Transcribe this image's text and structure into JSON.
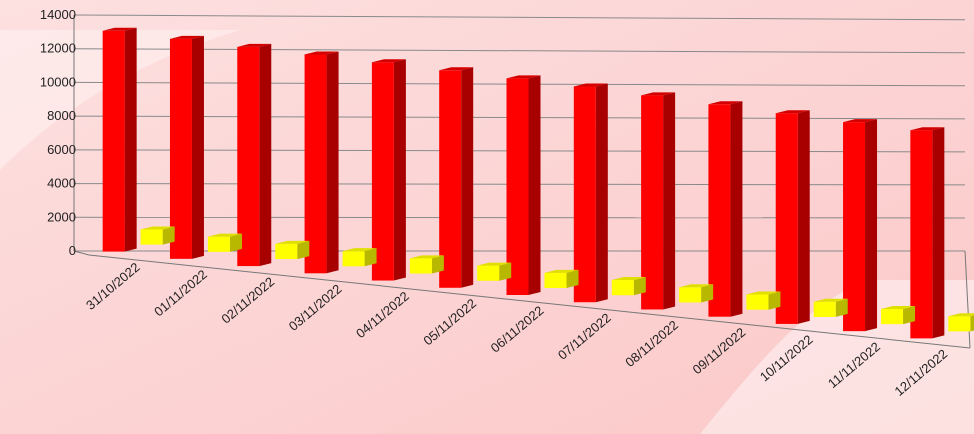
{
  "chart_data": {
    "type": "bar",
    "title": "",
    "xlabel": "",
    "ylabel": "",
    "ylim": [
      0,
      14000
    ],
    "yticks": [
      0,
      2000,
      4000,
      6000,
      8000,
      10000,
      12000,
      14000
    ],
    "categories": [
      "31/10/2022",
      "01/11/2022",
      "02/11/2022",
      "03/11/2022",
      "04/11/2022",
      "05/11/2022",
      "06/11/2022",
      "07/11/2022",
      "08/11/2022",
      "09/11/2022",
      "10/11/2022",
      "11/11/2022",
      "12/11/2022"
    ],
    "series": [
      {
        "values": [
          13100,
          13050,
          13000,
          12980,
          12950,
          12900,
          12850,
          12800,
          12700,
          12600,
          12500,
          12400,
          12350
        ]
      },
      {
        "values": [
          900,
          900,
          900,
          900,
          900,
          900,
          900,
          900,
          900,
          900,
          900,
          900,
          900
        ]
      }
    ],
    "grid": true,
    "legend": "none"
  },
  "colors": {
    "series_front": [
      "#ff0000",
      "#ffff00"
    ],
    "series_side": [
      "#a80000",
      "#b8b800"
    ],
    "series_top": [
      "#d40000",
      "#e0e000"
    ],
    "background": "#fcd3d3"
  }
}
